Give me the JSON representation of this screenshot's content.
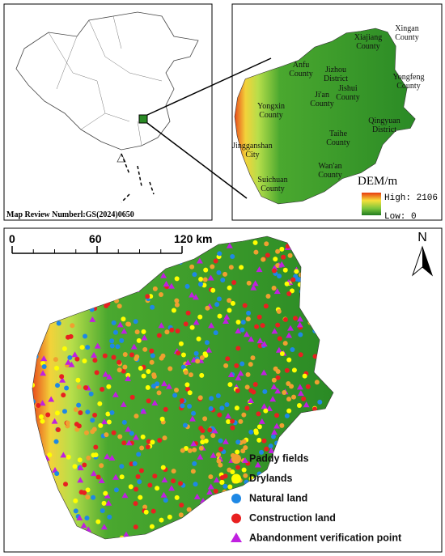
{
  "inset": {
    "review_number": "Map Review Numberl:GS(2024)0650"
  },
  "counties": [
    "Xingan County",
    "Xiajiang County",
    "Anfu County",
    "Jizhou District",
    "Ji'an County",
    "Jishui County",
    "Yongfeng County",
    "Yongxin County",
    "Qingyuan District",
    "Taihe County",
    "Jingganshan City",
    "Wan'an County",
    "Suichuan County"
  ],
  "dem_legend": {
    "title": "DEM/m",
    "high": "High: 2106",
    "low": "Low: 0"
  },
  "scale_bar": {
    "ticks": [
      0,
      60,
      {
        "value": 120,
        "label": "120 km"
      }
    ]
  },
  "north": "N",
  "legend": [
    "Paddy fields",
    "Drylands",
    "Natural land",
    "Construction land",
    "Abandonment verification point"
  ]
}
